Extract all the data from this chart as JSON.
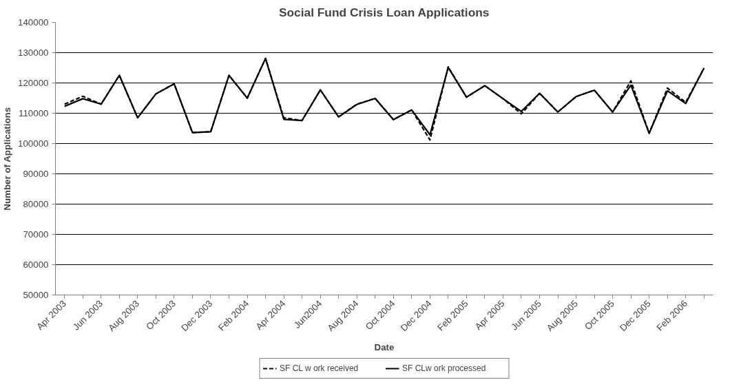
{
  "chart_data": {
    "type": "line",
    "title": "Social Fund Crisis Loan Applications",
    "xlabel": "Date",
    "ylabel": "Number of Applications",
    "categories": [
      "Apr 2003",
      null,
      "Jun 2003",
      null,
      "Aug 2003",
      null,
      "Oct 2003",
      null,
      "Dec 2003",
      null,
      "Feb 2004",
      null,
      "Apr 2004",
      null,
      "Jun2004",
      null,
      "Aug 2004",
      null,
      "Oct 2004",
      null,
      "Dec 2004",
      null,
      "Feb 2005",
      null,
      "Apr 2005",
      null,
      "Jun 2005",
      null,
      "Aug 2005",
      null,
      "Oct 2005",
      null,
      "Dec 2005",
      null,
      "Feb 2006",
      null
    ],
    "series": [
      {
        "name": "SF CL w ork received",
        "color": "#000000",
        "line_style": "dashed",
        "values": [
          113000,
          115600,
          113000,
          122500,
          108500,
          116400,
          119700,
          103600,
          103900,
          122500,
          115000,
          128100,
          108500,
          107600,
          117700,
          108800,
          113000,
          114900,
          107900,
          111100,
          101200,
          125300,
          115300,
          119100,
          114800,
          109800,
          116600,
          110400,
          115500,
          117600,
          110400,
          120700,
          103400,
          118300,
          113600,
          124900
        ]
      },
      {
        "name": "SF CLw ork processed",
        "color": "#000000",
        "line_style": "solid",
        "values": [
          112300,
          114800,
          113000,
          122500,
          108500,
          116400,
          119700,
          103600,
          103900,
          122500,
          115000,
          128100,
          108000,
          107600,
          117700,
          108800,
          112900,
          114900,
          107900,
          111100,
          102900,
          125100,
          115300,
          119100,
          114800,
          110600,
          116600,
          110400,
          115500,
          117600,
          110400,
          119300,
          103400,
          117400,
          113200,
          124900
        ]
      }
    ],
    "ylim": [
      50000,
      140000
    ],
    "yticks": [
      50000,
      60000,
      70000,
      80000,
      90000,
      100000,
      110000,
      120000,
      130000,
      140000
    ],
    "grid": "y",
    "legend": "bottom",
    "marker": "none"
  }
}
